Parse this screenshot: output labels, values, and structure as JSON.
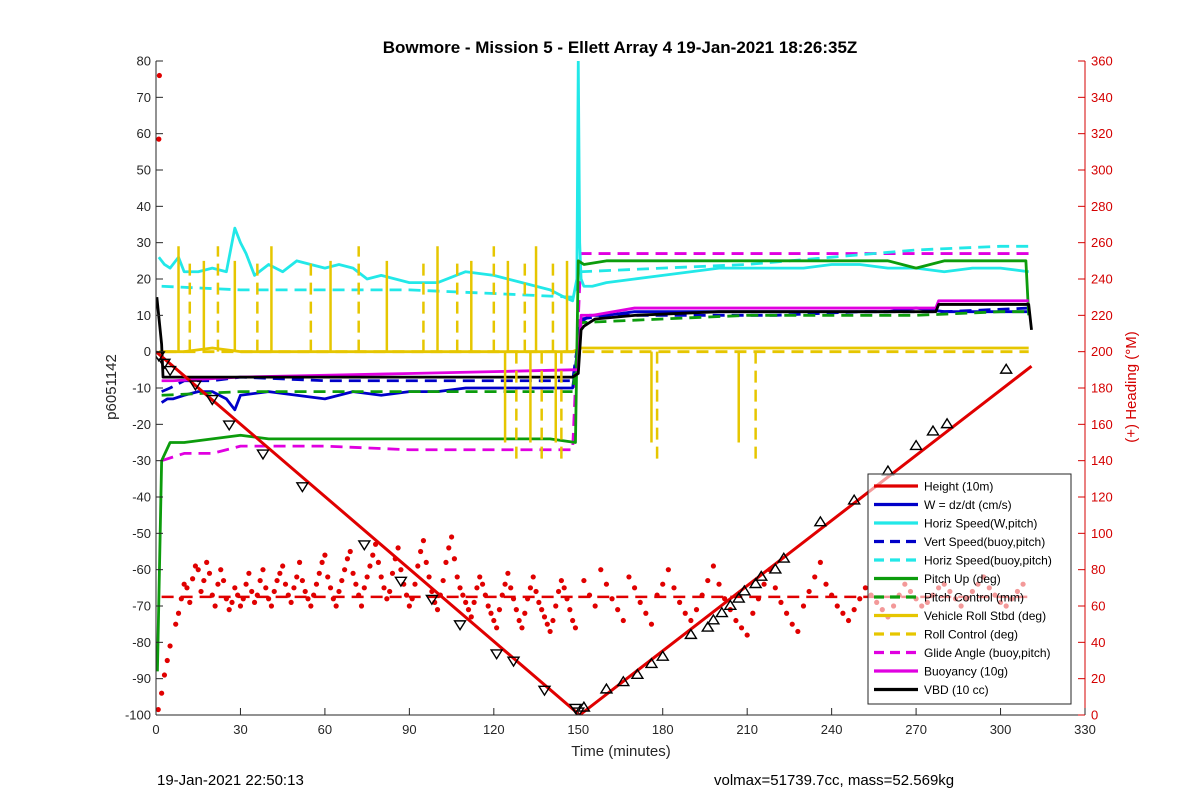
{
  "chart_data": {
    "type": "line",
    "title": "Bowmore - Mission 5 - Ellett Array 4 19-Jan-2021 18:26:35Z",
    "xlabel": "Time (minutes)",
    "ylabel_left": "p6051142",
    "ylabel_right": "(+) Heading (°M)",
    "xlim": [
      0,
      330
    ],
    "ylim_left": [
      -100,
      80
    ],
    "ylim_right": [
      0,
      360
    ],
    "xticks": [
      0,
      30,
      60,
      90,
      120,
      150,
      180,
      210,
      240,
      270,
      300,
      330
    ],
    "yticks_left": [
      -100,
      -90,
      -80,
      -70,
      -60,
      -50,
      -40,
      -30,
      -20,
      -10,
      0,
      10,
      20,
      30,
      40,
      50,
      60,
      70,
      80
    ],
    "yticks_right": [
      0,
      20,
      40,
      60,
      80,
      100,
      120,
      140,
      160,
      180,
      200,
      220,
      240,
      260,
      280,
      300,
      320,
      340,
      360
    ],
    "grid": false,
    "legend_position": "lower-right",
    "colors": {
      "axis": "#262626",
      "right_axis": "#d40000",
      "red": "#e00000",
      "blue": "#0000c8",
      "cyan": "#22e8e8",
      "green": "#0c9c0c",
      "yellow": "#e6c600",
      "magenta": "#e000e0",
      "black": "#000000"
    },
    "series": [
      {
        "name": "Height (10m)",
        "color": "#e00000",
        "style": "solid",
        "x": [
          0,
          150.5,
          311
        ],
        "y": [
          0,
          -100,
          -4
        ]
      },
      {
        "name": "W = dz/dt (cm/s)",
        "color": "#0000c8",
        "style": "solid",
        "x": [
          2,
          4,
          6,
          10,
          15,
          20,
          25,
          28,
          30,
          40,
          50,
          60,
          70,
          80,
          90,
          100,
          110,
          120,
          130,
          140,
          148,
          151,
          154,
          160,
          170,
          180,
          190,
          200,
          210,
          220,
          230,
          240,
          250,
          260,
          270,
          280,
          290,
          300,
          310
        ],
        "y": [
          -14,
          -13,
          -13,
          -12,
          -11,
          -11,
          -13,
          -16,
          -12,
          -11,
          -12,
          -13,
          -11,
          -12,
          -11,
          -11,
          -10,
          -10,
          -10,
          -10,
          -10,
          8,
          10,
          10,
          11,
          11,
          11,
          11,
          11,
          11,
          11,
          11,
          11,
          11,
          12,
          11,
          11,
          11,
          11
        ]
      },
      {
        "name": "Horiz Speed(W,pitch)",
        "color": "#22e8e8",
        "style": "solid",
        "x": [
          1,
          3,
          5,
          8,
          10,
          15,
          20,
          25,
          28,
          30,
          32,
          35,
          40,
          45,
          50,
          55,
          60,
          65,
          70,
          75,
          80,
          90,
          100,
          110,
          120,
          130,
          140,
          145,
          148,
          149.5,
          150,
          150.5,
          151,
          152,
          155,
          160,
          170,
          180,
          190,
          200,
          210,
          220,
          230,
          240,
          250,
          260,
          270,
          280,
          290,
          300,
          310
        ],
        "y": [
          26,
          24,
          23,
          26,
          22,
          22,
          23,
          22,
          34,
          30,
          27,
          21,
          24,
          22,
          25,
          24,
          23,
          24,
          23,
          20,
          21,
          19,
          19,
          22,
          21,
          19,
          17,
          15,
          14,
          20,
          80,
          30,
          20,
          18,
          18,
          19,
          20,
          21,
          22,
          23,
          23,
          23,
          23,
          24,
          24,
          23,
          23,
          22,
          23,
          23,
          22
        ]
      },
      {
        "name": "Vert Speed(buoy,pitch)",
        "color": "#0000c8",
        "style": "dashed",
        "x": [
          2,
          5,
          10,
          20,
          30,
          60,
          90,
          120,
          148,
          151,
          160,
          190,
          220,
          250,
          280,
          310
        ],
        "y": [
          -11,
          -10,
          -8,
          -8,
          -7,
          -8,
          -8,
          -8,
          -8,
          9,
          10,
          10,
          10,
          11,
          11,
          12
        ]
      },
      {
        "name": "Horiz Speed(buoy,pitch)",
        "color": "#22e8e8",
        "style": "dashed",
        "x": [
          2,
          30,
          60,
          90,
          120,
          148,
          151,
          180,
          210,
          240,
          270,
          300,
          310
        ],
        "y": [
          18,
          17,
          17,
          17,
          16,
          15,
          22,
          23,
          24,
          26,
          28,
          29,
          29
        ]
      },
      {
        "name": "Pitch Up (deg)",
        "color": "#0c9c0c",
        "style": "solid",
        "x": [
          0.5,
          2,
          5,
          10,
          20,
          30,
          40,
          60,
          80,
          100,
          120,
          140,
          149,
          150,
          152,
          160,
          180,
          200,
          220,
          240,
          260,
          270,
          280,
          300,
          309,
          310
        ],
        "y": [
          -88,
          -30,
          -25,
          -25,
          -24,
          -23,
          -24,
          -24,
          -24,
          -24,
          -24,
          -24,
          -25,
          25,
          24,
          25,
          25,
          25,
          25,
          25,
          25,
          23,
          25,
          25,
          25,
          10
        ]
      },
      {
        "name": "Pitch Control (mm)",
        "color": "#0c9c0c",
        "style": "dashed",
        "x": [
          2,
          30,
          60,
          90,
          120,
          148,
          151,
          180,
          210,
          240,
          270,
          300,
          310
        ],
        "y": [
          -12,
          -11,
          -11,
          -11,
          -11,
          -11,
          8,
          9,
          10,
          10,
          10,
          11,
          11
        ]
      },
      {
        "name": "Vehicle Roll Stbd (deg)",
        "color": "#e6c600",
        "style": "solid",
        "x": [
          1,
          10,
          20,
          30,
          60,
          90,
          120,
          148,
          151,
          160,
          190,
          220,
          250,
          280,
          310
        ],
        "y": [
          0,
          0,
          1,
          0,
          0,
          0,
          0,
          0,
          1,
          1,
          1,
          1,
          1,
          1,
          1
        ]
      },
      {
        "name": "Roll Control (deg)",
        "color": "#e6c600",
        "style": "dashed",
        "x": [
          3,
          10,
          20,
          40,
          60,
          90,
          120,
          148,
          151,
          180,
          210,
          240,
          270,
          300,
          310
        ],
        "y": [
          0,
          0,
          0,
          0,
          0,
          0,
          0,
          0,
          0,
          0,
          0,
          0,
          0,
          0,
          0
        ]
      },
      {
        "name": "Glide Angle (buoy,pitch)",
        "color": "#e000e0",
        "style": "dashed",
        "x": [
          2,
          10,
          20,
          30,
          60,
          90,
          120,
          148,
          151,
          180,
          210,
          240,
          270,
          300,
          310
        ],
        "y": [
          -30,
          -28,
          -28,
          -26,
          -26,
          -27,
          -27,
          -27,
          27,
          27,
          27,
          27,
          27,
          27,
          27
        ]
      },
      {
        "name": "Buoyancy (10g)",
        "color": "#e000e0",
        "style": "solid",
        "x": [
          2,
          6,
          30,
          60,
          90,
          120,
          148,
          150,
          151,
          155,
          170,
          200,
          230,
          260,
          277,
          278,
          310
        ],
        "y": [
          -8,
          -8,
          -7,
          -6.5,
          -6,
          -5.5,
          -5,
          -5,
          10,
          10,
          12,
          12,
          12,
          12,
          12,
          14,
          14
        ]
      },
      {
        "name": "VBD (10 cc)",
        "color": "#000000",
        "style": "solid",
        "x": [
          0.3,
          2,
          2.5,
          6,
          30,
          60,
          90,
          120,
          148,
          150,
          151,
          152,
          156,
          170,
          200,
          230,
          260,
          277,
          278,
          310,
          311
        ],
        "y": [
          15,
          2,
          -7,
          -7,
          -7,
          -7,
          -7,
          -7,
          -7,
          -6,
          6,
          7,
          9,
          10,
          11,
          11,
          11,
          11,
          13,
          13,
          6
        ]
      }
    ],
    "heading": {
      "color": "#e00000",
      "mean_down": 65,
      "mean_up": 65,
      "mean_down_range": [
        2,
        150
      ],
      "mean_up_range": [
        150,
        311
      ],
      "scatter_x": [
        0.8,
        1,
        1.2,
        2,
        3,
        4,
        5,
        7,
        8,
        9,
        10,
        11,
        12,
        13,
        14,
        15,
        16,
        17,
        18,
        19,
        20,
        21,
        22,
        23,
        24,
        25,
        26,
        27,
        28,
        29,
        30,
        31,
        32,
        33,
        34,
        35,
        36,
        37,
        38,
        39,
        40,
        41,
        42,
        43,
        44,
        45,
        46,
        47,
        48,
        49,
        50,
        51,
        52,
        53,
        54,
        55,
        56,
        57,
        58,
        59,
        60,
        61,
        62,
        63,
        64,
        65,
        66,
        67,
        68,
        69,
        70,
        71,
        72,
        73,
        74,
        75,
        76,
        77,
        78,
        79,
        80,
        81,
        82,
        83,
        84,
        85,
        86,
        87,
        88,
        89,
        90,
        91,
        92,
        93,
        94,
        95,
        96,
        97,
        98,
        99,
        100,
        101,
        102,
        103,
        104,
        105,
        106,
        107,
        108,
        109,
        110,
        111,
        112,
        113,
        114,
        115,
        116,
        117,
        118,
        119,
        120,
        121,
        122,
        123,
        124,
        125,
        126,
        127,
        128,
        129,
        130,
        131,
        132,
        133,
        134,
        135,
        136,
        137,
        138,
        139,
        140,
        141,
        142,
        143,
        144,
        145,
        146,
        147,
        148,
        149,
        152,
        154,
        156,
        158,
        160,
        162,
        164,
        166,
        168,
        170,
        172,
        174,
        176,
        178,
        180,
        182,
        184,
        186,
        188,
        190,
        192,
        194,
        196,
        198,
        200,
        202,
        204,
        206,
        208,
        210,
        212,
        214,
        216,
        218,
        220,
        222,
        224,
        226,
        228,
        230,
        232,
        234,
        236,
        238,
        240,
        242,
        244,
        246,
        248,
        250,
        252,
        254,
        256,
        258,
        260,
        262,
        264,
        266,
        268,
        270,
        272,
        274,
        276,
        278,
        280,
        282,
        284,
        286,
        288,
        290,
        292,
        294,
        296,
        298,
        300,
        302,
        304,
        306,
        308
      ],
      "scatter_y": [
        3,
        317,
        352,
        12,
        22,
        30,
        38,
        50,
        56,
        64,
        72,
        70,
        62,
        75,
        82,
        80,
        68,
        74,
        84,
        78,
        66,
        60,
        72,
        80,
        74,
        64,
        58,
        62,
        70,
        66,
        60,
        64,
        72,
        78,
        68,
        62,
        66,
        74,
        80,
        70,
        64,
        60,
        68,
        74,
        78,
        82,
        72,
        66,
        62,
        70,
        76,
        84,
        74,
        68,
        64,
        60,
        66,
        72,
        78,
        84,
        88,
        76,
        70,
        64,
        60,
        68,
        74,
        80,
        86,
        90,
        78,
        72,
        66,
        60,
        70,
        76,
        82,
        88,
        94,
        84,
        76,
        70,
        64,
        68,
        78,
        86,
        92,
        80,
        72,
        66,
        60,
        64,
        72,
        82,
        90,
        96,
        84,
        76,
        68,
        62,
        58,
        66,
        74,
        84,
        92,
        98,
        86,
        76,
        70,
        66,
        62,
        58,
        54,
        62,
        70,
        76,
        72,
        66,
        60,
        56,
        52,
        48,
        58,
        66,
        72,
        78,
        70,
        64,
        58,
        52,
        48,
        56,
        64,
        70,
        76,
        68,
        62,
        58,
        54,
        50,
        46,
        52,
        60,
        68,
        74,
        70,
        64,
        58,
        52,
        48,
        74,
        66,
        60,
        80,
        72,
        64,
        58,
        52,
        76,
        70,
        62,
        56,
        50,
        66,
        72,
        80,
        70,
        62,
        56,
        52,
        58,
        66,
        74,
        82,
        72,
        64,
        58,
        52,
        48,
        44,
        56,
        64,
        72,
        80,
        70,
        62,
        56,
        50,
        46,
        60,
        68,
        76,
        84,
        72,
        66,
        60,
        56,
        52,
        58,
        64,
        70,
        66,
        62,
        58,
        54,
        60,
        66,
        72,
        68,
        64,
        60,
        62,
        66,
        70,
        72,
        68,
        64,
        60,
        64,
        68,
        72,
        76,
        70,
        66,
        62,
        60,
        64,
        68,
        72,
        74,
        70
      ]
    },
    "markers": {
      "x": [
        1,
        3,
        5,
        14,
        20,
        26,
        38,
        52,
        74,
        87,
        98,
        108,
        121,
        127,
        138,
        149,
        150,
        152,
        160,
        166,
        171,
        176,
        180,
        190,
        196,
        198,
        201,
        204,
        207,
        209,
        213,
        215,
        220,
        223,
        236,
        248,
        260,
        270,
        276,
        281,
        302
      ],
      "y": [
        -1,
        -3,
        -5,
        -9,
        -13,
        -20,
        -28,
        -37,
        -53,
        -63,
        -68,
        -75,
        -83,
        -85,
        -93,
        -98,
        -99,
        -98,
        -93,
        -91,
        -89,
        -86,
        -84,
        -78,
        -76,
        -74,
        -72,
        -70,
        -68,
        -66,
        -64,
        -62,
        -60,
        -57,
        -47,
        -41,
        -33,
        -26,
        -22,
        -20,
        -5
      ]
    }
  },
  "footer": {
    "left": "19-Jan-2021 22:50:13",
    "right": "volmax=51739.7cc, mass=52.569kg"
  }
}
